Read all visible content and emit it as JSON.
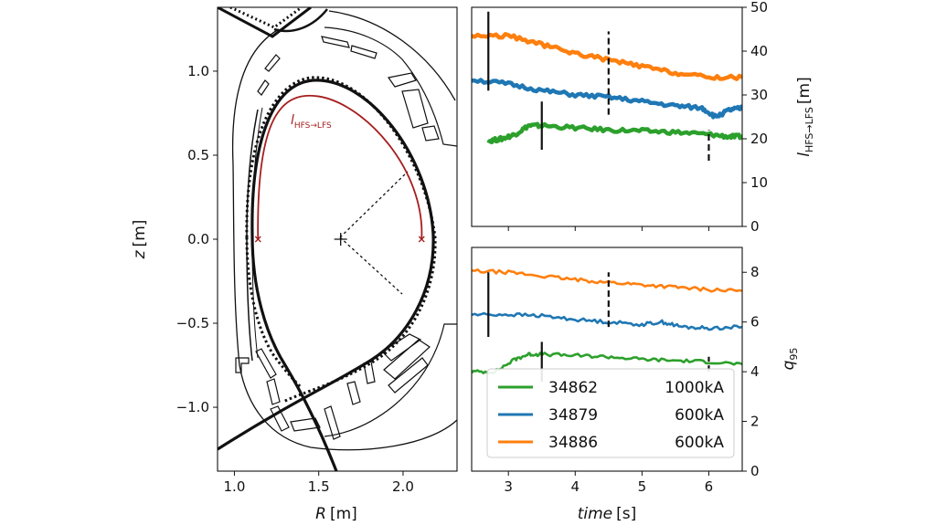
{
  "chart_data": [
    {
      "type": "line",
      "name": "equilibrium",
      "xlabel_var": "R",
      "xlabel_unit": "[m]",
      "ylabel_var": "z",
      "ylabel_unit": "[m]",
      "xlim": [
        0.9,
        2.32
      ],
      "ylim": [
        -1.38,
        1.38
      ],
      "xticks": [
        "1.0",
        "1.5",
        "2.0"
      ],
      "xtick_values": [
        1.0,
        1.5,
        2.0
      ],
      "yticks": [
        "1.0",
        "0.5",
        "0.0",
        "−0.5",
        "−1.0"
      ],
      "ytick_values": [
        1.0,
        0.5,
        0.0,
        -0.5,
        -1.0
      ],
      "annotation": {
        "main": "l",
        "sub": "HFS→LFS",
        "color": "#a61d1d"
      },
      "magnetic_axis": [
        1.63,
        0.0
      ],
      "separatrix": {
        "x_point_lower": [
          1.39,
          -0.9
        ],
        "inner_mid": [
          1.1,
          0.0
        ],
        "outer_mid": [
          2.14,
          0.0
        ],
        "top": [
          1.52,
          0.92
        ]
      },
      "connection_length_path": {
        "start": [
          1.14,
          0.0
        ],
        "end": [
          2.11,
          0.0
        ],
        "top_z": 0.85
      }
    },
    {
      "type": "line",
      "name": "connection-length",
      "ylabel_main": "l",
      "ylabel_sub": "HFS→LFS",
      "ylabel_unit": "[m]",
      "xlim": [
        2.45,
        6.5
      ],
      "ylim": [
        0,
        50
      ],
      "yticks": [
        0,
        10,
        20,
        30,
        40,
        50
      ],
      "series": [
        {
          "name": "34862",
          "color": "#2ca02c",
          "x": [
            2.7,
            2.9,
            3.1,
            3.3,
            3.5,
            4.0,
            4.5,
            5.0,
            5.5,
            6.0,
            6.3,
            6.5
          ],
          "values": [
            19.5,
            20.0,
            21.0,
            23.0,
            23.0,
            22.5,
            22.0,
            21.8,
            21.5,
            21.0,
            20.5,
            20.5
          ]
        },
        {
          "name": "34879",
          "color": "#1f77b4",
          "x": [
            2.45,
            3.0,
            3.5,
            4.0,
            4.5,
            5.0,
            5.5,
            5.9,
            6.1,
            6.3,
            6.5
          ],
          "values": [
            33.5,
            32.5,
            31.0,
            30.0,
            29.5,
            28.5,
            27.5,
            27.0,
            25.0,
            26.5,
            27.0
          ]
        },
        {
          "name": "34886",
          "color": "#ff7f0e",
          "x": [
            2.45,
            3.0,
            3.5,
            4.0,
            4.5,
            5.0,
            5.5,
            6.0,
            6.5
          ],
          "values": [
            43.5,
            43.5,
            41.5,
            39.5,
            38.0,
            36.5,
            35.0,
            34.0,
            34.0
          ]
        }
      ],
      "markers": [
        {
          "t": 2.7,
          "style": "solid",
          "range": [
            31.0,
            49.0
          ]
        },
        {
          "t": 4.5,
          "style": "dashed",
          "range": [
            25.5,
            44.5
          ]
        },
        {
          "t": 3.5,
          "style": "solid",
          "range": [
            17.5,
            28.5
          ]
        },
        {
          "t": 6.0,
          "style": "dashed",
          "range": [
            15.0,
            22.0
          ]
        }
      ]
    },
    {
      "type": "line",
      "name": "q95",
      "ylabel_main": "q",
      "ylabel_sub": "95",
      "xlabel_var": "time",
      "xlabel_unit": "[s]",
      "xlim": [
        2.45,
        6.5
      ],
      "ylim": [
        0,
        9
      ],
      "yticks": [
        0,
        2,
        4,
        6,
        8
      ],
      "xticks": [
        3,
        4,
        5,
        6
      ],
      "series": [
        {
          "name": "34862",
          "label": "1000kA",
          "color": "#2ca02c",
          "x": [
            2.45,
            2.8,
            3.1,
            3.3,
            3.5,
            4.0,
            4.5,
            5.0,
            5.5,
            6.0,
            6.5
          ],
          "values": [
            4.0,
            4.0,
            4.5,
            4.7,
            4.7,
            4.65,
            4.6,
            4.5,
            4.45,
            4.4,
            4.3
          ]
        },
        {
          "name": "34879",
          "label": "600kA",
          "color": "#1f77b4",
          "x": [
            2.45,
            3.0,
            3.5,
            4.0,
            4.5,
            5.0,
            5.3,
            5.6,
            6.0,
            6.5
          ],
          "values": [
            6.3,
            6.3,
            6.25,
            6.1,
            6.0,
            5.9,
            6.0,
            5.8,
            5.75,
            5.8
          ]
        },
        {
          "name": "34886",
          "label": "600kA",
          "color": "#ff7f0e",
          "x": [
            2.45,
            3.0,
            3.5,
            4.0,
            4.5,
            5.0,
            5.5,
            6.0,
            6.5
          ],
          "values": [
            8.05,
            8.0,
            7.85,
            7.7,
            7.6,
            7.5,
            7.4,
            7.3,
            7.25
          ]
        }
      ],
      "markers": [
        {
          "t": 2.7,
          "style": "solid",
          "range": [
            5.4,
            8.0
          ]
        },
        {
          "t": 4.5,
          "style": "dashed",
          "range": [
            5.8,
            8.0
          ]
        },
        {
          "t": 3.5,
          "style": "solid",
          "range": [
            3.6,
            5.2
          ]
        },
        {
          "t": 6.0,
          "style": "dashed",
          "range": [
            4.0,
            4.6
          ]
        }
      ]
    }
  ]
}
